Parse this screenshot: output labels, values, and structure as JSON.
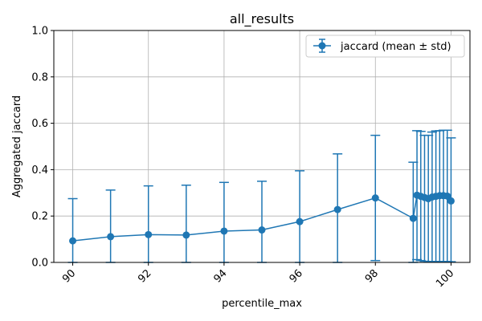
{
  "chart_data": {
    "type": "line",
    "title": "all_results",
    "xlabel": "percentile_max",
    "ylabel": "Aggregated jaccard",
    "xlim": [
      89.5,
      100.5
    ],
    "ylim": [
      0,
      1
    ],
    "xticks": [
      90,
      92,
      94,
      96,
      98,
      100
    ],
    "yticks": [
      0.0,
      0.2,
      0.4,
      0.6,
      0.8,
      1.0
    ],
    "xtick_labels": [
      "90",
      "92",
      "94",
      "96",
      "98",
      "100"
    ],
    "ytick_labels": [
      "0.0",
      "0.2",
      "0.4",
      "0.6",
      "0.8",
      "1.0"
    ],
    "grid": true,
    "legend_position": "top-right",
    "color": "#1f77b4",
    "series": [
      {
        "name": "jaccard (mean ± std)",
        "x": [
          90,
          91,
          92,
          93,
          94,
          95,
          96,
          97,
          98,
          99,
          99.1,
          99.2,
          99.3,
          99.4,
          99.5,
          99.6,
          99.7,
          99.8,
          99.9,
          100
        ],
        "y": [
          0.093,
          0.111,
          0.12,
          0.118,
          0.135,
          0.14,
          0.176,
          0.228,
          0.278,
          0.19,
          0.29,
          0.285,
          0.28,
          0.275,
          0.282,
          0.285,
          0.288,
          0.288,
          0.286,
          0.265
        ],
        "err_low": [
          0.0,
          0.0,
          0.0,
          0.0,
          0.0,
          0.0,
          0.0,
          0.0,
          0.008,
          0.0,
          0.012,
          0.008,
          0.005,
          0.004,
          0.004,
          0.004,
          0.004,
          0.004,
          0.004,
          0.003
        ],
        "err_high": [
          0.275,
          0.312,
          0.33,
          0.333,
          0.345,
          0.35,
          0.395,
          0.468,
          0.548,
          0.432,
          0.568,
          0.565,
          0.548,
          0.548,
          0.562,
          0.567,
          0.568,
          0.57,
          0.57,
          0.537
        ]
      }
    ]
  }
}
